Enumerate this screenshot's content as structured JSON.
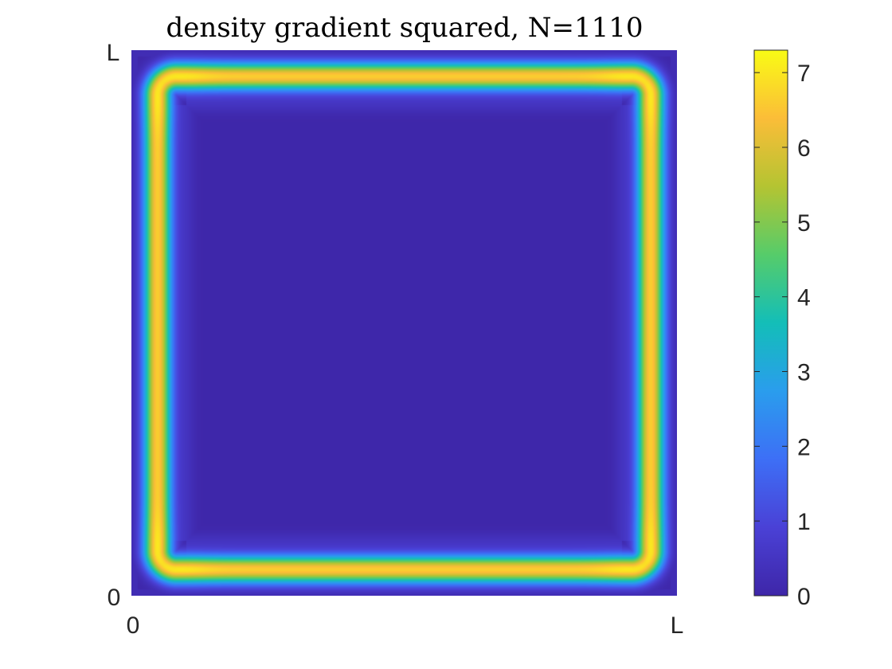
{
  "chart_data": {
    "type": "heatmap",
    "title": "density gradient squared, N=1110",
    "xlabel": "",
    "ylabel": "",
    "x_ticks": [
      "0",
      "L"
    ],
    "y_ticks": [
      "0",
      "L"
    ],
    "colorbar": {
      "range": [
        0,
        7.3
      ],
      "ticks": [
        0,
        1,
        2,
        3,
        4,
        5,
        6,
        7
      ],
      "colormap": "parula"
    },
    "field": {
      "description_values": {
        "interior": 0.1,
        "edge_band_peak": 6.6,
        "corner_peak": 7.0,
        "boundary_value": 0.2
      },
      "band_center_fraction": 0.048,
      "band_halfwidth_fraction": 0.018,
      "secondary_ring_fraction": 0.1,
      "secondary_ring_value": 0.35
    },
    "colors": {
      "c0": "#3e26a8",
      "c1": "#4a41d6",
      "c2": "#3d6ff6",
      "c3": "#2a9ded",
      "c4": "#13beb8",
      "c5": "#56cc6a",
      "c6": "#b4c432",
      "c7": "#fbbd38",
      "c8": "#f9fb15"
    }
  }
}
